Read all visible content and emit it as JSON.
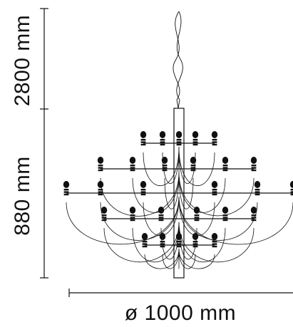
{
  "dimensions": {
    "cable_height": "2800 mm",
    "body_height": "880 mm",
    "diameter": "ø 1000 mm"
  },
  "colors": {
    "line": "#111111",
    "bulb": "#111111",
    "background": "#ffffff"
  },
  "product": {
    "type": "chandelier",
    "tiers": 5,
    "bulbs_per_tier": [
      5,
      8,
      8,
      8,
      5
    ]
  }
}
